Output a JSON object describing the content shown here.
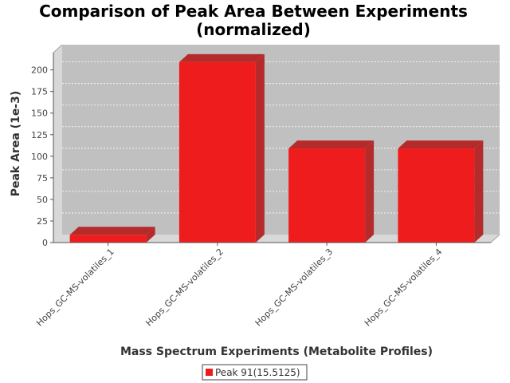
{
  "chart_data": {
    "type": "bar",
    "title": "Comparison of Peak Area Between Experiments",
    "subtitle": "(normalized)",
    "xlabel": "Mass Spectrum Experiments (Metabolite Profiles)",
    "ylabel": "Peak Area (1e-3)",
    "categories": [
      "Hops_GC-MS-volatiles_1",
      "Hops_GC-MS-volatiles_2",
      "Hops_GC-MS-volatiles_3",
      "Hops_GC-MS-volatiles_4"
    ],
    "series": [
      {
        "name": "Peak 91(15.5125)",
        "values": [
          9,
          209,
          109,
          109
        ],
        "color": "#ee1c1c"
      }
    ],
    "ylim": [
      0,
      220
    ],
    "yticks": [
      0,
      25,
      50,
      75,
      100,
      125,
      150,
      175,
      200
    ],
    "grid": true,
    "three_d": true,
    "plot_background": "#c0c0c0",
    "legend_position": "bottom-center"
  }
}
